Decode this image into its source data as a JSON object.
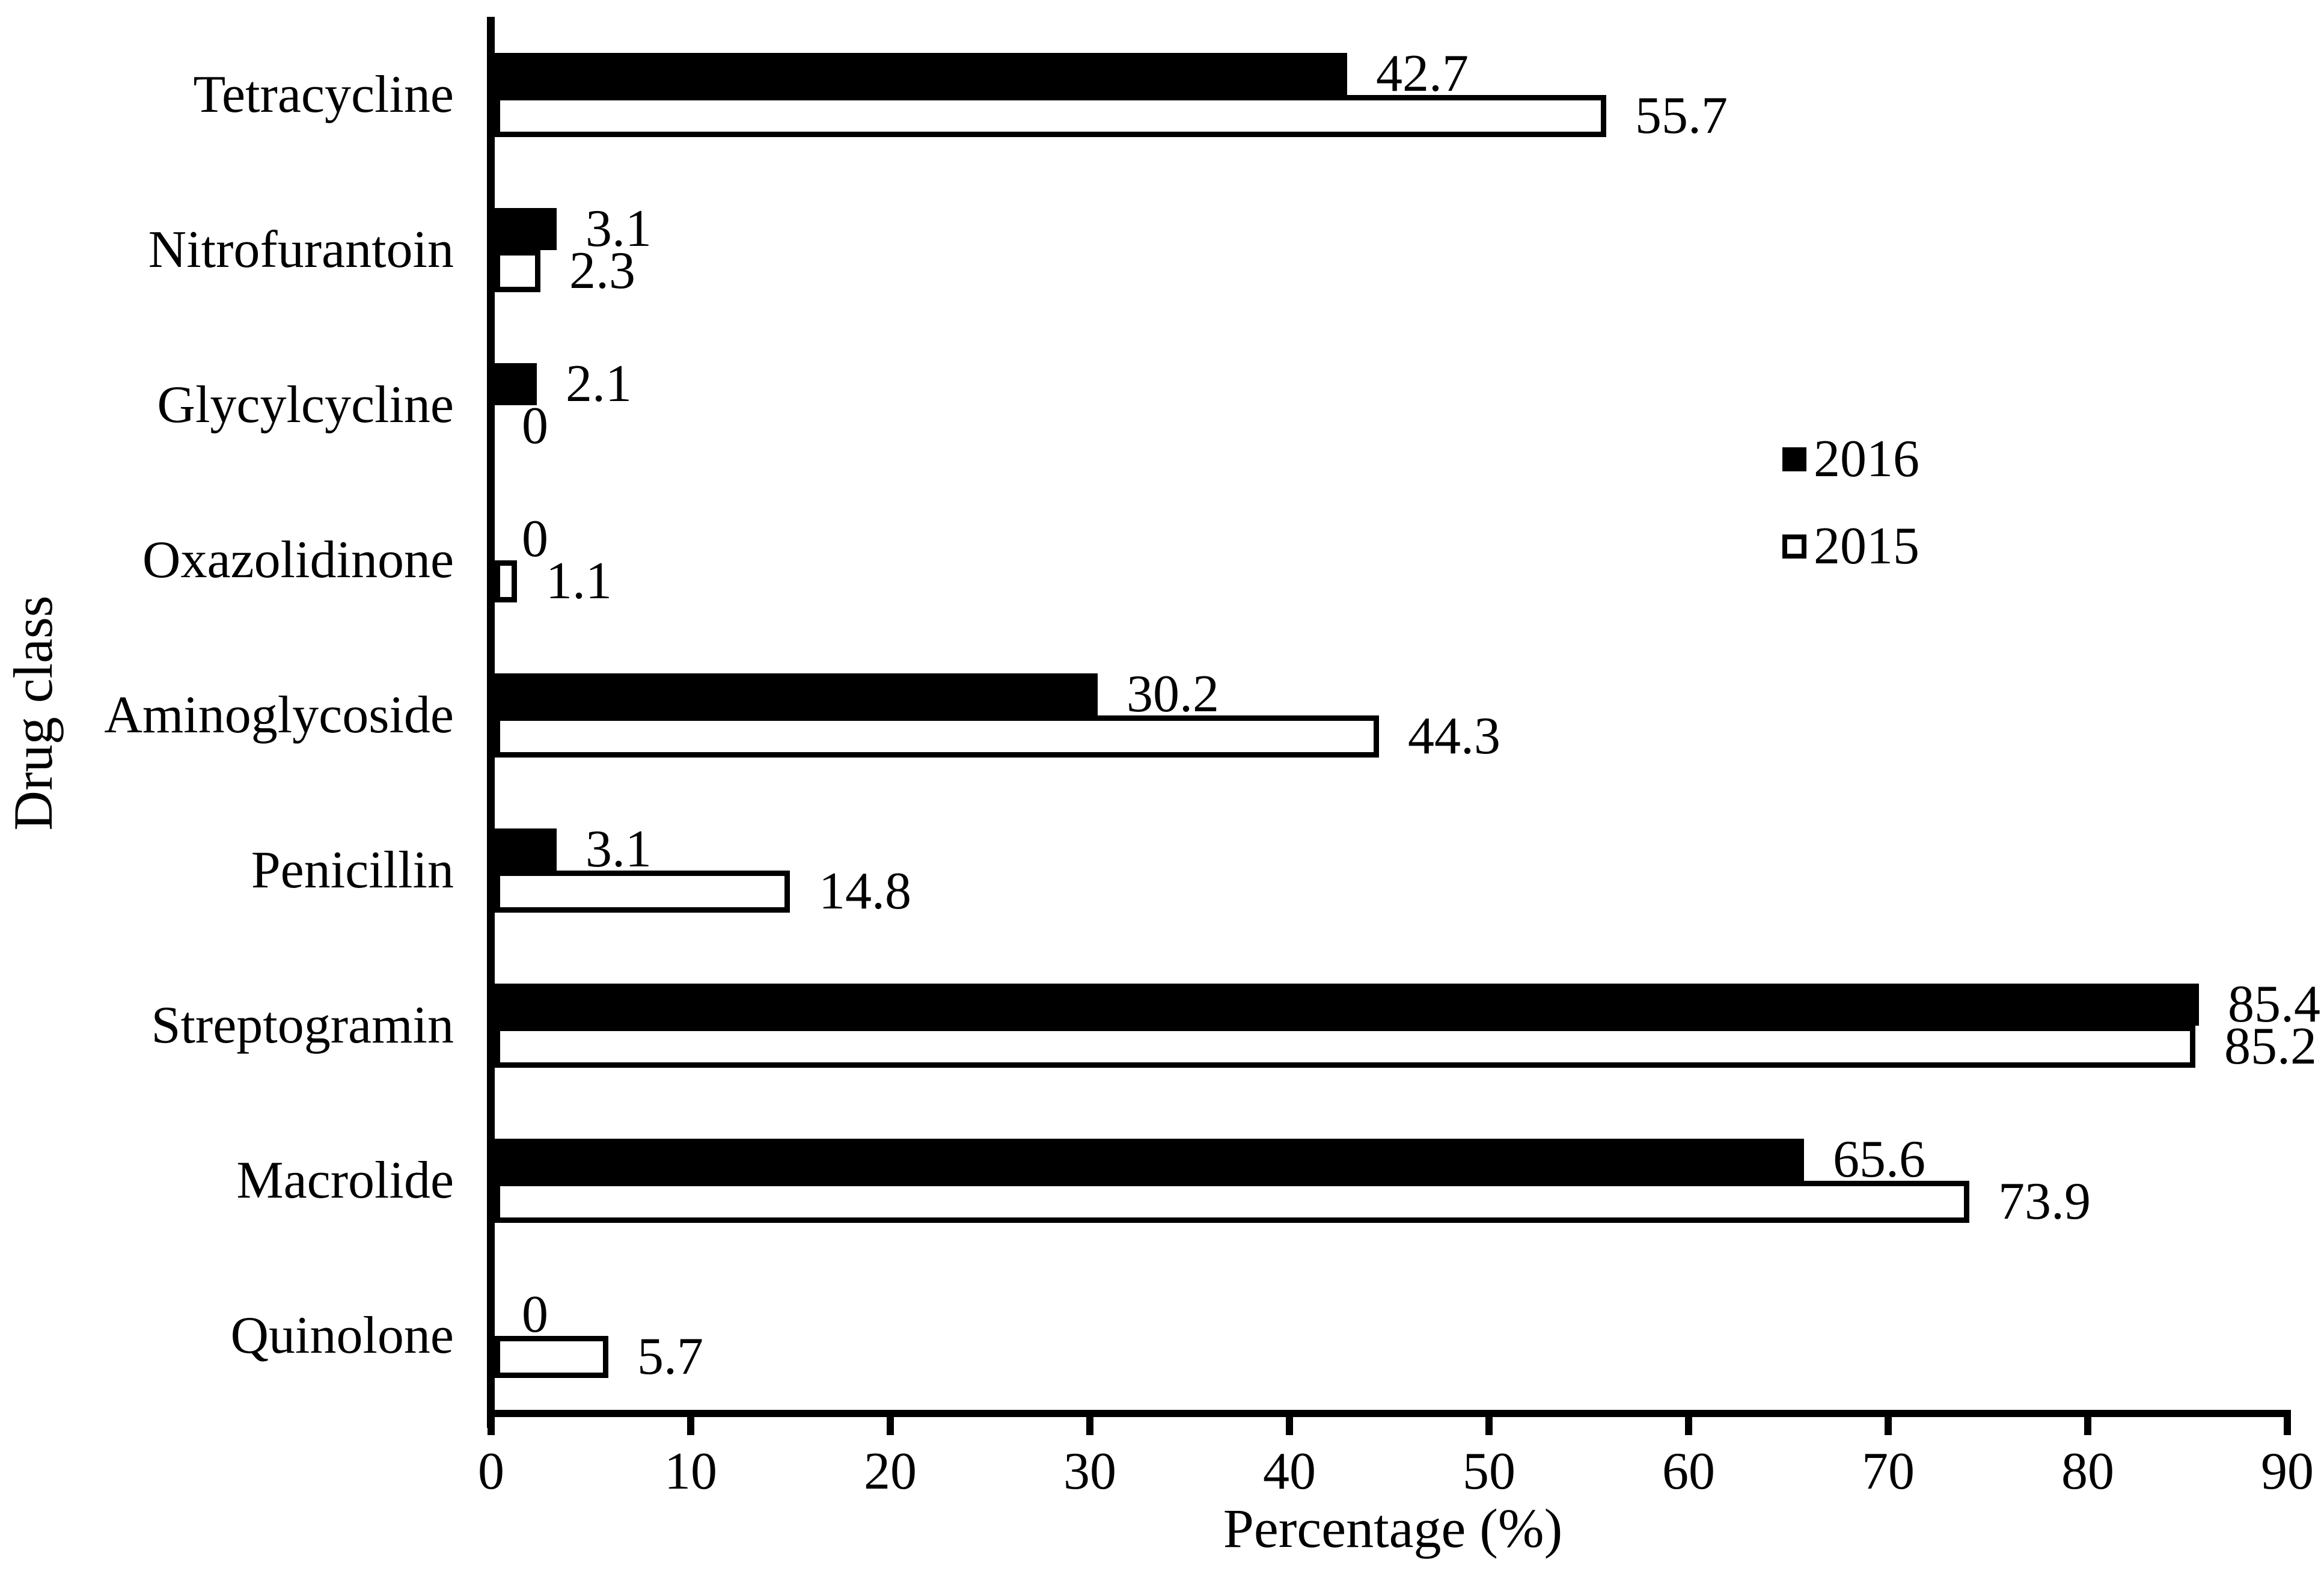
{
  "figure": {
    "background_color": "#ffffff",
    "foreground_color": "#000000"
  },
  "chart_data": {
    "type": "bar",
    "orientation": "horizontal",
    "title": "",
    "xlabel": "Percentage (%)",
    "ylabel": "Drug class",
    "xlim": [
      0,
      90
    ],
    "xticks": [
      0,
      10,
      20,
      30,
      40,
      50,
      60,
      70,
      80,
      90
    ],
    "grid": false,
    "data_labels": true,
    "legend_position": "right-upper",
    "categories": [
      "Tetracycline",
      "Nitrofurantoin",
      "Glycylcycline",
      "Oxazolidinone",
      "Aminoglycoside",
      "Penicillin",
      "Streptogramin",
      "Macrolide",
      "Quinolone"
    ],
    "series": [
      {
        "name": "2016",
        "fill": "#000000",
        "stroke": "#000000",
        "values": [
          42.7,
          3.1,
          2.1,
          0,
          30.2,
          3.1,
          85.4,
          65.6,
          0
        ]
      },
      {
        "name": "2015",
        "fill": "#ffffff",
        "stroke": "#000000",
        "values": [
          55.7,
          2.3,
          0,
          1.1,
          44.3,
          14.8,
          85.2,
          73.9,
          5.7
        ]
      }
    ]
  }
}
